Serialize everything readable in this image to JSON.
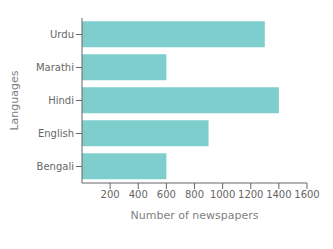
{
  "chart_data": {
    "type": "bar",
    "orientation": "horizontal",
    "categories": [
      "Urdu",
      "Marathi",
      "Hindi",
      "English",
      "Bengali"
    ],
    "values": [
      1300,
      600,
      1400,
      900,
      600
    ],
    "color": "#7ecece",
    "xlabel": "Number of newspapers",
    "ylabel": "Languages",
    "xlim": [
      0,
      1600
    ],
    "xticks": [
      200,
      400,
      600,
      800,
      1000,
      1200,
      1400,
      1600
    ],
    "grid": false
  }
}
